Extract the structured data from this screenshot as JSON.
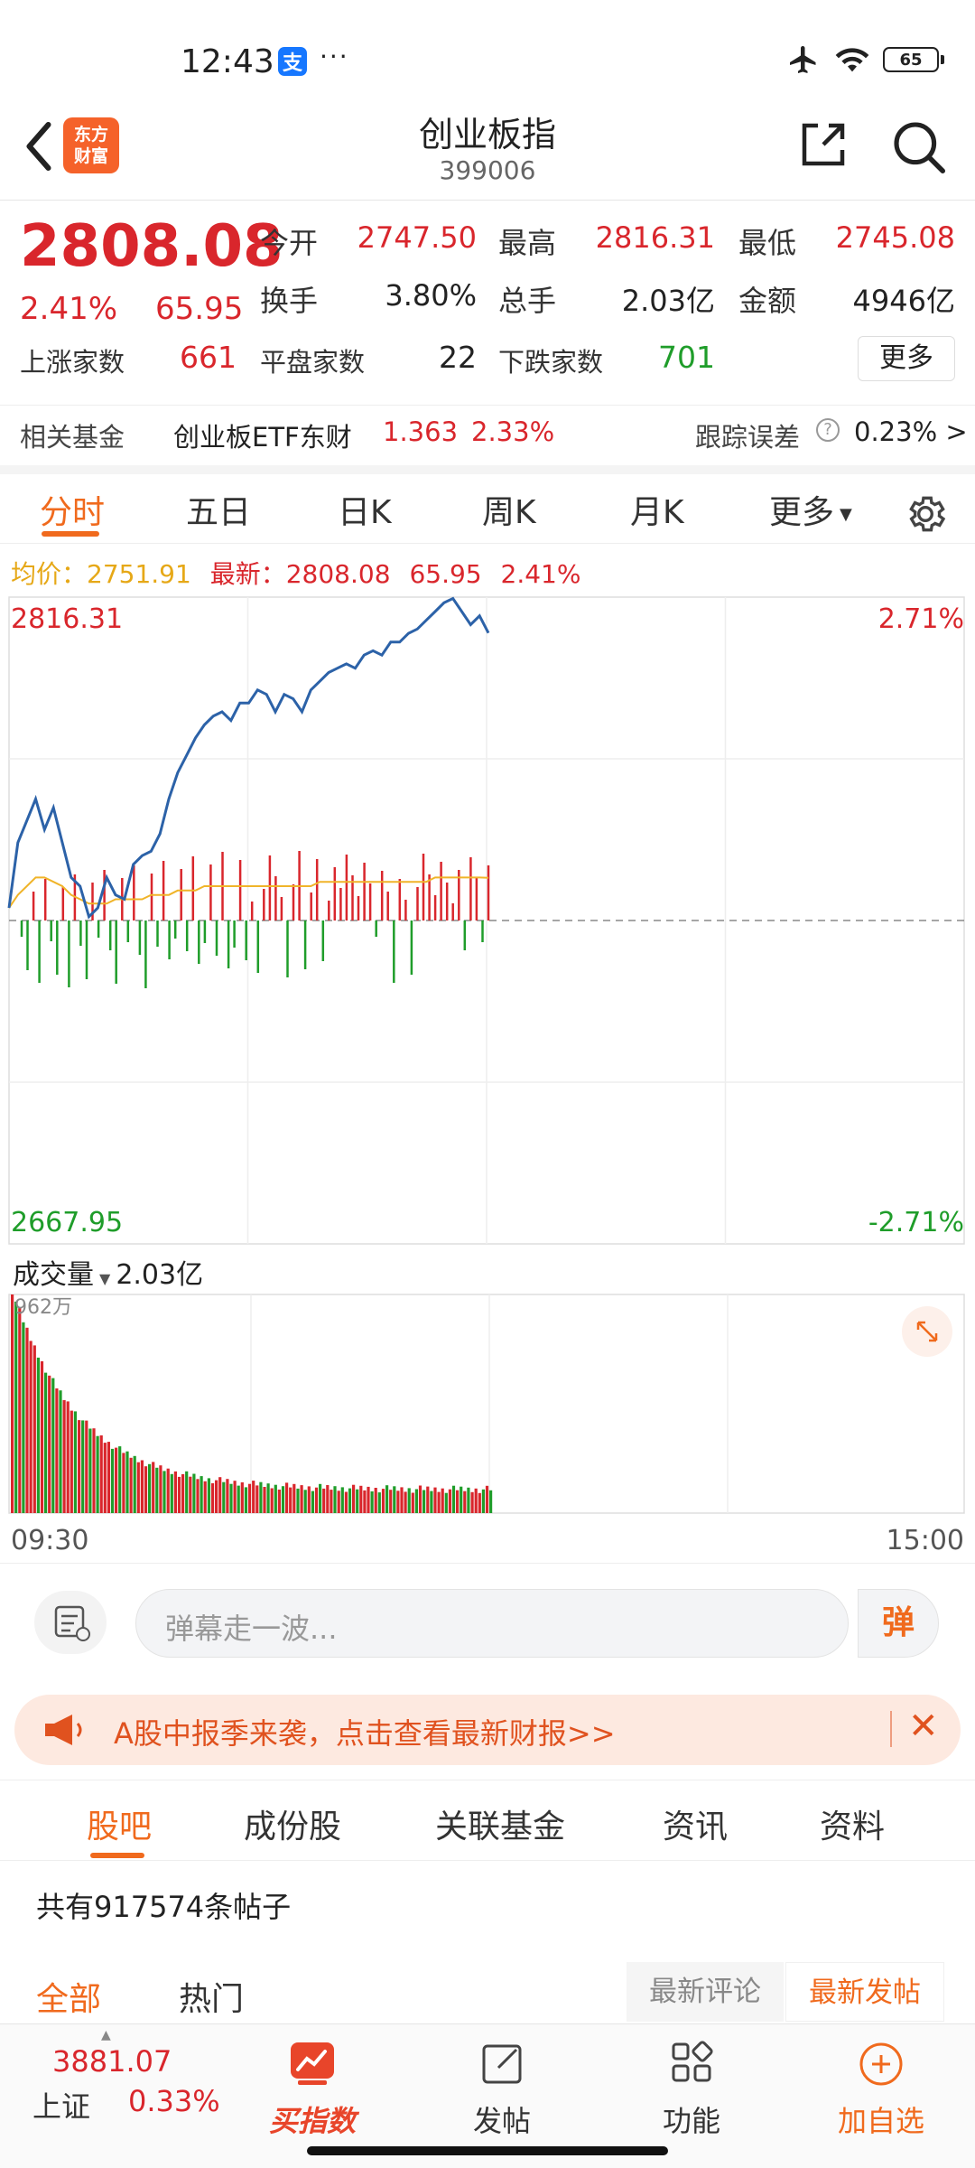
{
  "status_bar": {
    "time": "12:43",
    "alipay_badge": "支",
    "dots": "···",
    "battery": "65"
  },
  "header": {
    "logo_line1": "东方",
    "logo_line2": "财富",
    "title": "创业板指",
    "code": "399006"
  },
  "quote": {
    "price": "2808.08",
    "change_pct": "2.41%",
    "change": "65.95",
    "rows": [
      [
        {
          "label": "今开",
          "value": "2747.50",
          "color": "red"
        },
        {
          "label": "最高",
          "value": "2816.31",
          "color": "red"
        },
        {
          "label": "最低",
          "value": "2745.08",
          "color": "red"
        }
      ],
      [
        {
          "label": "换手",
          "value": "3.80%",
          "color": "black"
        },
        {
          "label": "总手",
          "value": "2.03亿",
          "color": "black"
        },
        {
          "label": "金额",
          "value": "4946亿",
          "color": "black"
        }
      ]
    ],
    "breadth": [
      {
        "label": "上涨家数",
        "value": "661",
        "color": "red"
      },
      {
        "label": "平盘家数",
        "value": "22",
        "color": "black"
      },
      {
        "label": "下跌家数",
        "value": "701",
        "color": "green"
      }
    ],
    "more_label": "更多"
  },
  "fund": {
    "label": "相关基金",
    "name": "创业板ETF东财",
    "price": "1.363",
    "pct": "2.33%",
    "tracking_label": "跟踪误差",
    "tracking_value": "0.23% >"
  },
  "tabs": [
    "分时",
    "五日",
    "日K",
    "周K",
    "月K",
    "更多"
  ],
  "avg_row": {
    "avg_label": "均价：",
    "avg_value": "2751.91",
    "latest_label": "最新：",
    "latest_value": "2808.08",
    "chg": "65.95",
    "pct": "2.41%"
  },
  "chart_data": {
    "type": "line",
    "title": "",
    "y_max_label": "2816.31",
    "y_min_label": "2667.95",
    "pct_max_label": "2.71%",
    "pct_min_label": "-2.71%",
    "prev_close": 2742.13,
    "ylim": [
      2667.95,
      2816.31
    ],
    "x_labels": [
      "09:30",
      "15:00"
    ],
    "price": [
      2745,
      2760,
      2765,
      2770,
      2763,
      2768,
      2760,
      2752,
      2750,
      2743,
      2745,
      2752,
      2748,
      2747,
      2755,
      2757,
      2758,
      2762,
      2770,
      2776,
      2780,
      2784,
      2787,
      2789,
      2790,
      2788,
      2792,
      2792,
      2795,
      2794,
      2790,
      2794,
      2793,
      2790,
      2795,
      2797,
      2799,
      2800,
      2801,
      2800,
      2803,
      2804,
      2803,
      2806,
      2806,
      2808,
      2809,
      2811,
      2813,
      2815,
      2816,
      2813,
      2810,
      2812,
      2808.08
    ],
    "avg": [
      2745,
      2748,
      2750,
      2752,
      2752,
      2751,
      2750,
      2748,
      2747,
      2746,
      2746,
      2746,
      2747,
      2747,
      2747,
      2747,
      2748,
      2748,
      2748,
      2749,
      2749,
      2749,
      2750,
      2750,
      2750,
      2750,
      2750,
      2750,
      2750,
      2750,
      2750,
      2750,
      2750,
      2750,
      2750,
      2751,
      2751,
      2751,
      2751,
      2751,
      2751,
      2751,
      2751,
      2751,
      2751,
      2751,
      2751,
      2751,
      2752,
      2752,
      2752,
      2752,
      2752,
      2752,
      2751.91
    ]
  },
  "volume": {
    "label": "成交量",
    "total": "2.03亿",
    "scale": "962万"
  },
  "danmaku": {
    "placeholder": "弹幕走一波...",
    "button": "弹"
  },
  "banner": {
    "text": "A股中报季来袭，点击查看最新财报>>"
  },
  "info_tabs": [
    "股吧",
    "成份股",
    "关联基金",
    "资讯",
    "资料"
  ],
  "post_count": "共有917574条帖子",
  "filters": {
    "all": "全部",
    "hot": "热门",
    "latest_comment": "最新评论",
    "latest_post": "最新发帖"
  },
  "bottom_nav": {
    "sh_value": "3881.07",
    "sh_name": "上证",
    "sh_pct": "0.33%",
    "items": [
      "买指数",
      "发帖",
      "功能",
      "加自选"
    ]
  }
}
